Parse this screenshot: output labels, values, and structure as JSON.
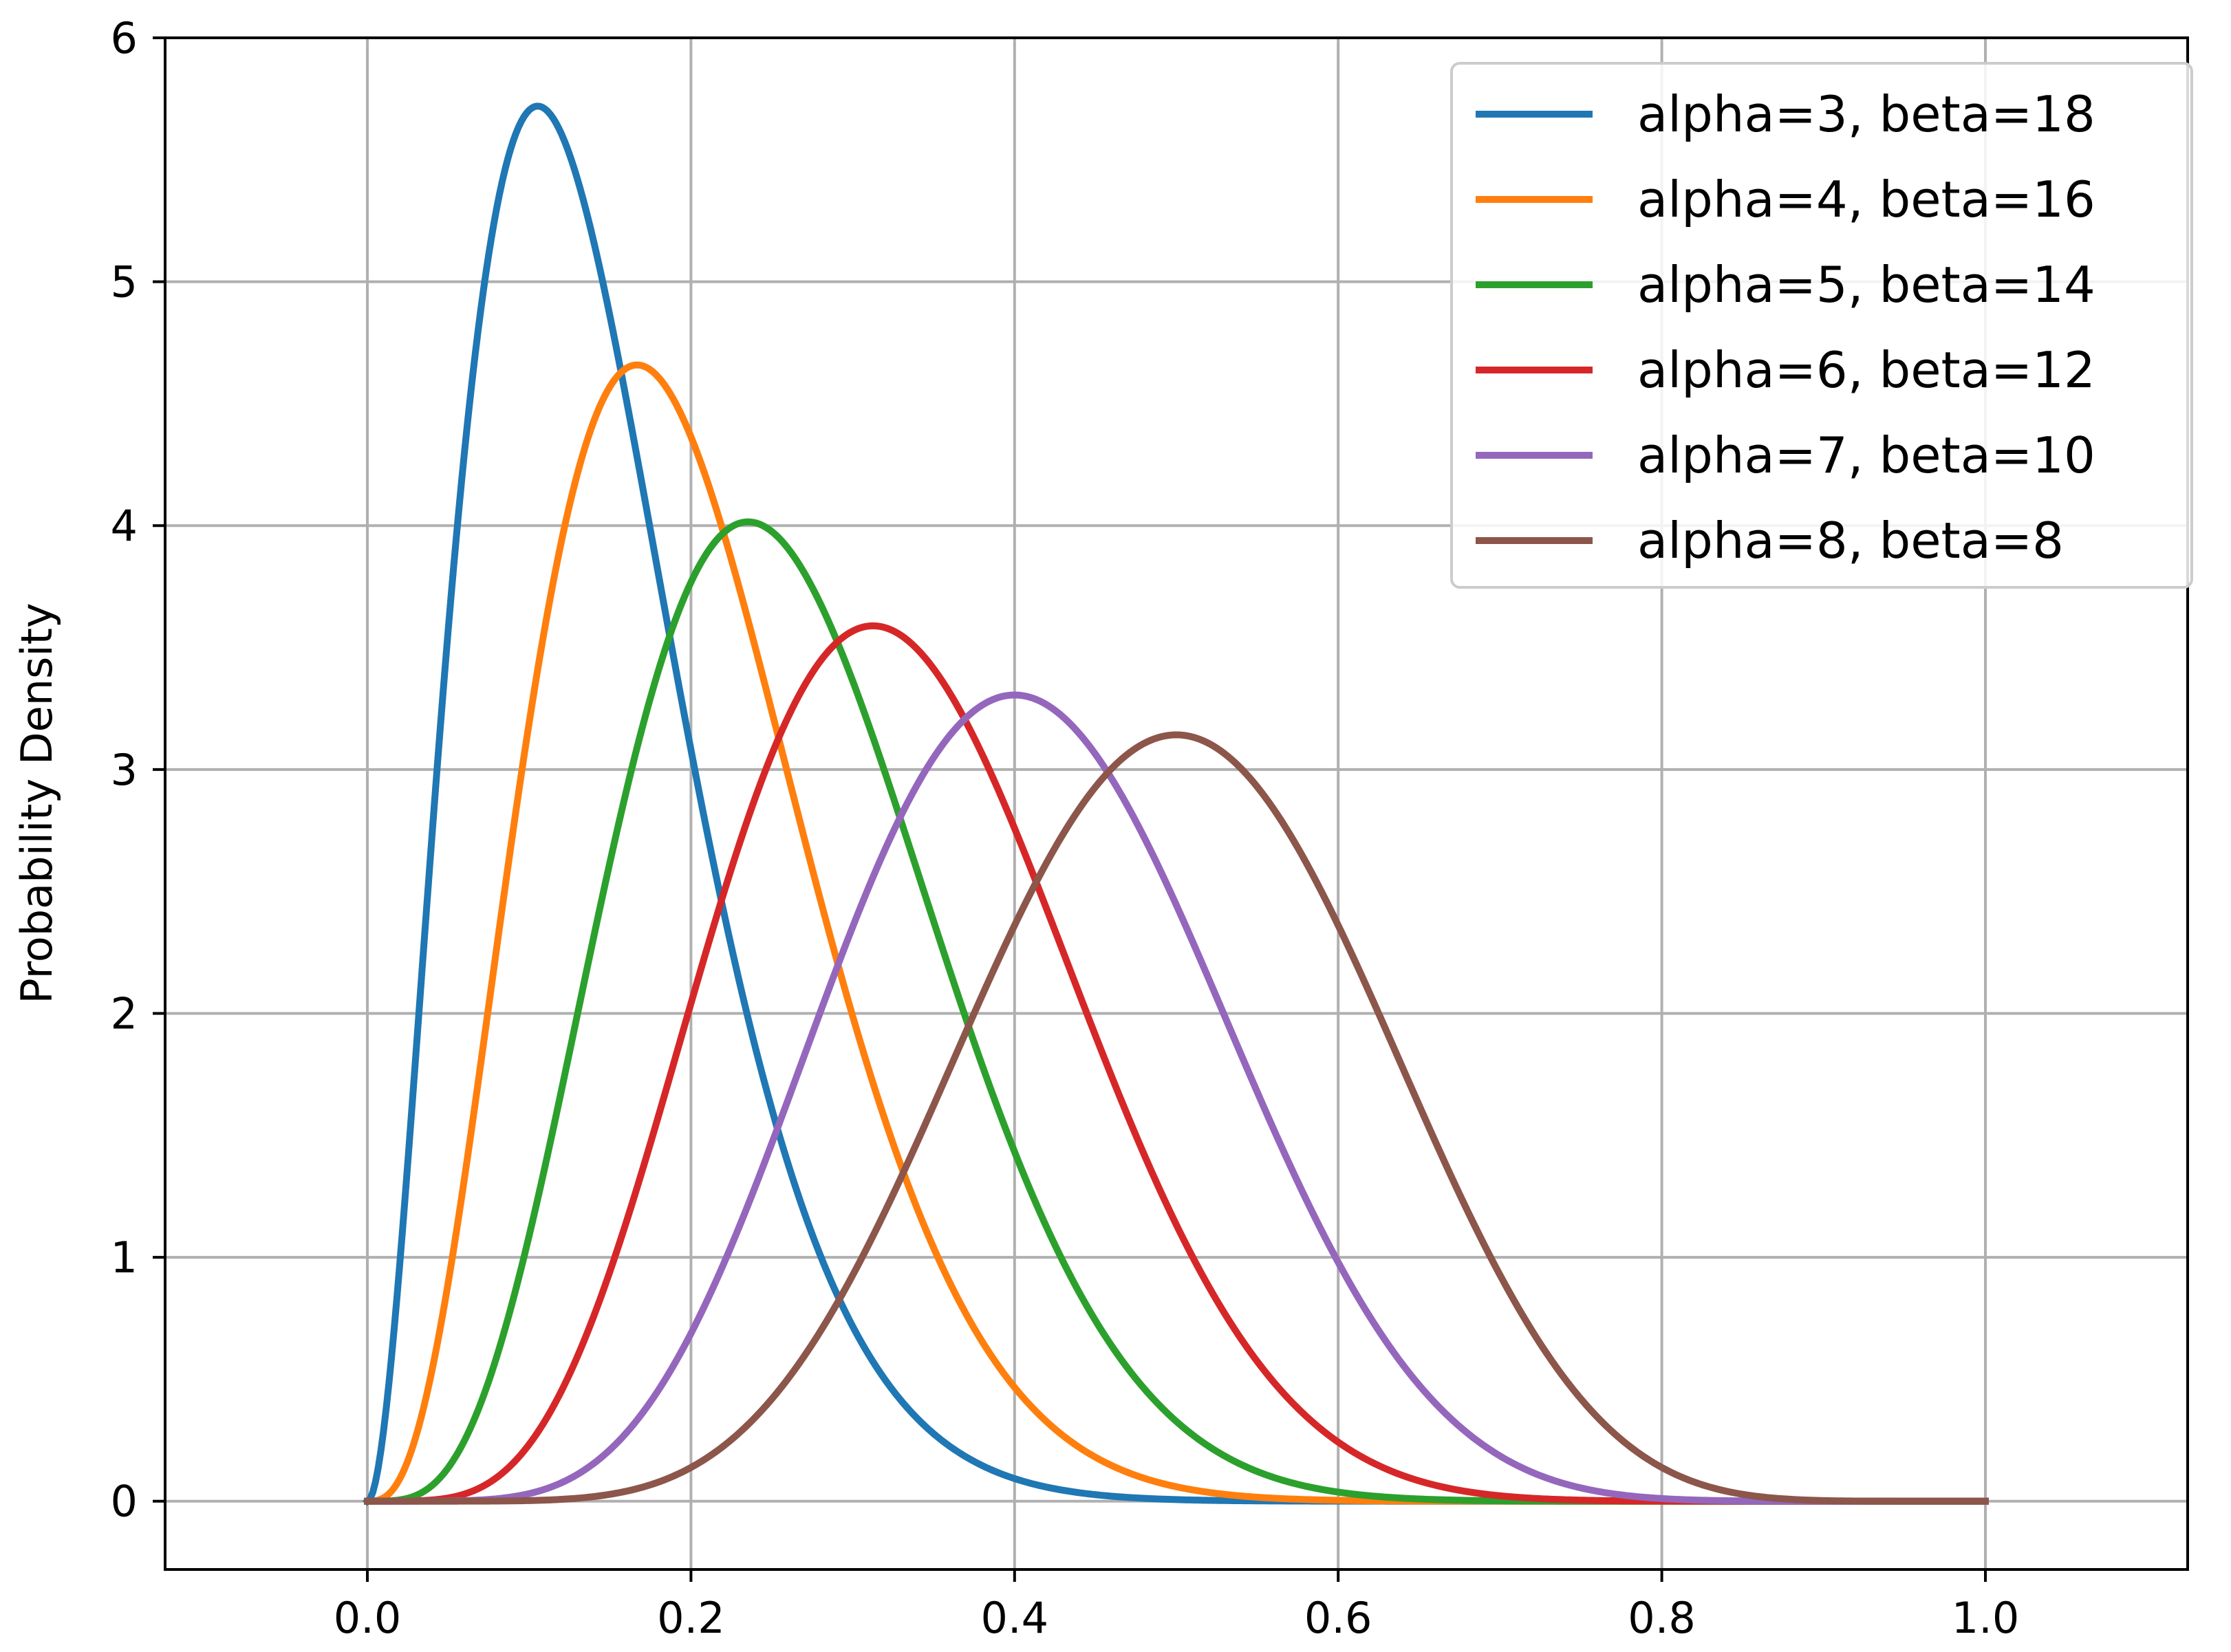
{
  "chart_data": {
    "type": "line",
    "title": "",
    "xlabel": "",
    "ylabel": "Probability Density",
    "xlim": [
      -0.125,
      1.125
    ],
    "ylim": [
      -0.28,
      6.0
    ],
    "x_ticks": [
      0.0,
      0.2,
      0.4,
      0.6,
      0.8,
      1.0
    ],
    "x_tick_labels": [
      "0.0",
      "0.2",
      "0.4",
      "0.6",
      "0.8",
      "1.0"
    ],
    "y_ticks": [
      0,
      1,
      2,
      3,
      4,
      5,
      6
    ],
    "y_tick_labels": [
      "0",
      "1",
      "2",
      "3",
      "4",
      "5",
      "6"
    ],
    "grid": true,
    "legend_position": "top-right",
    "function": "beta probability density",
    "x_range": [
      0,
      1
    ],
    "series": [
      {
        "name": "alpha=3, beta=18",
        "alpha": 3,
        "beta": 18,
        "color": "#1f77b4"
      },
      {
        "name": "alpha=4, beta=16",
        "alpha": 4,
        "beta": 16,
        "color": "#ff7f0e"
      },
      {
        "name": "alpha=5, beta=14",
        "alpha": 5,
        "beta": 14,
        "color": "#2ca02c"
      },
      {
        "name": "alpha=6, beta=12",
        "alpha": 6,
        "beta": 12,
        "color": "#d62728"
      },
      {
        "name": "alpha=7, beta=10",
        "alpha": 7,
        "beta": 10,
        "color": "#9467bd"
      },
      {
        "name": "alpha=8, beta=8",
        "alpha": 8,
        "beta": 8,
        "color": "#8c564b"
      }
    ]
  }
}
